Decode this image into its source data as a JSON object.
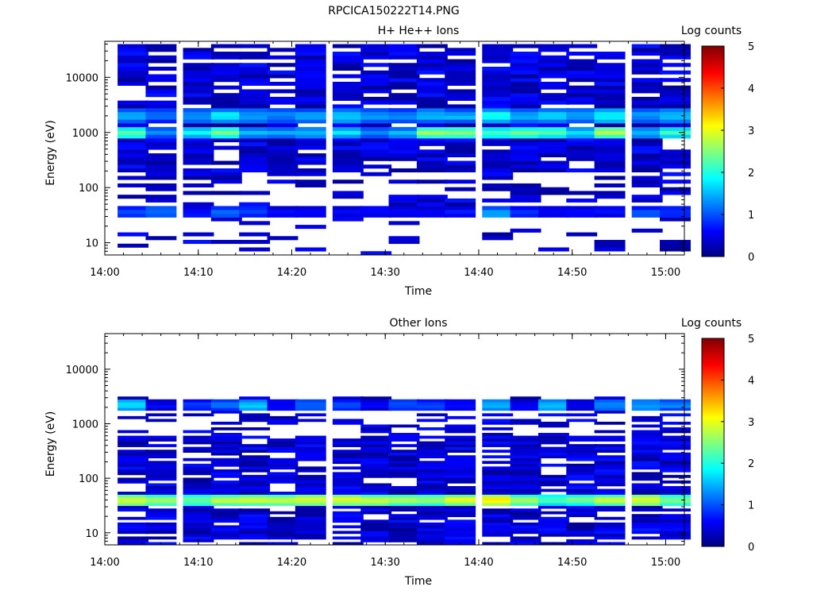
{
  "figure_title": "RPCICA150222T14.PNG",
  "chart_data": [
    {
      "type": "heatmap",
      "title": "H+ He++ Ions",
      "xlabel": "Time",
      "ylabel": "Energy (eV)",
      "colorbar_label": "Log counts",
      "y_scale": "log",
      "ylim": [
        6,
        45000
      ],
      "y_ticks": [
        10,
        100,
        1000,
        10000
      ],
      "y_tick_labels": [
        "10",
        "100",
        "1000",
        "10000"
      ],
      "x_range": [
        "14:00",
        "15:02"
      ],
      "x_ticks": [
        "14:00",
        "14:10",
        "14:20",
        "14:30",
        "14:40",
        "14:50",
        "15:00"
      ],
      "colorbar_range": [
        0,
        5
      ],
      "colorbar_ticks": [
        "0",
        "1",
        "2",
        "3",
        "4",
        "5"
      ],
      "times": [
        "14:03",
        "14:06",
        "14:10",
        "14:13",
        "14:16",
        "14:19",
        "14:22",
        "14:26",
        "14:29",
        "14:32",
        "14:35",
        "14:38",
        "14:42",
        "14:45",
        "14:48",
        "14:51",
        "14:54",
        "14:58",
        "15:01"
      ],
      "bands": [
        {
          "energy_center_eV": 2000,
          "log_counts": [
            1.6,
            1.2,
            1.5,
            1.9,
            1.6,
            1.4,
            1.5,
            1.8,
            1.5,
            1.4,
            1.7,
            1.6,
            2.1,
            1.6,
            1.9,
            1.5,
            2.0,
            1.4,
            1.7
          ]
        },
        {
          "energy_center_eV": 1000,
          "log_counts": [
            2.4,
            1.3,
            1.8,
            2.4,
            1.6,
            1.4,
            1.5,
            1.7,
            1.4,
            1.5,
            2.7,
            2.5,
            2.2,
            2.4,
            2.3,
            1.7,
            2.8,
            1.6,
            2.1
          ]
        },
        {
          "energy_center_eV": 35,
          "log_counts": [
            1.1,
            1.3,
            0.7,
            1.2,
            1.0,
            0.6,
            0.6,
            0.6,
            0.7,
            0.7,
            0.6,
            0.8,
            1.5,
            0.8,
            0.6,
            0.6,
            0.6,
            1.1,
            0.9
          ]
        },
        {
          "energy_center_eV": 9,
          "log_counts": [
            0,
            0,
            0,
            0,
            0,
            0,
            0,
            0,
            0,
            0,
            0,
            0,
            0,
            0,
            0,
            0,
            0.2,
            0,
            0.2
          ]
        }
      ]
    },
    {
      "type": "heatmap",
      "title": "Other Ions",
      "xlabel": "Time",
      "ylabel": "Energy (eV)",
      "colorbar_label": "Log counts",
      "y_scale": "log",
      "ylim": [
        6,
        45000
      ],
      "y_ticks": [
        10,
        100,
        1000,
        10000
      ],
      "y_tick_labels": [
        "10",
        "100",
        "1000",
        "10000"
      ],
      "x_range": [
        "14:00",
        "15:02"
      ],
      "x_ticks": [
        "14:00",
        "14:10",
        "14:20",
        "14:30",
        "14:40",
        "14:50",
        "15:00"
      ],
      "colorbar_range": [
        0,
        5
      ],
      "colorbar_ticks": [
        "0",
        "1",
        "2",
        "3",
        "4",
        "5"
      ],
      "times": [
        "14:03",
        "14:06",
        "14:10",
        "14:13",
        "14:16",
        "14:19",
        "14:22",
        "14:26",
        "14:29",
        "14:32",
        "14:35",
        "14:38",
        "14:42",
        "14:45",
        "14:48",
        "14:51",
        "14:54",
        "14:58",
        "15:01"
      ],
      "bands": [
        {
          "energy_center_eV": 2200,
          "log_counts": [
            1.8,
            0.6,
            0.9,
            1.2,
            1.7,
            0.7,
            1.2,
            1.0,
            0.6,
            1.1,
            1.0,
            0.6,
            1.6,
            0.6,
            1.7,
            0.6,
            1.4,
            1.5,
            1.3
          ]
        },
        {
          "energy_center_eV": 40,
          "log_counts": [
            3.1,
            2.8,
            2.6,
            3.0,
            3.0,
            3.0,
            3.1,
            3.1,
            3.0,
            2.9,
            2.8,
            3.2,
            3.4,
            2.8,
            2.3,
            2.6,
            3.0,
            3.2,
            2.6
          ]
        },
        {
          "energy_center_eV": 12,
          "log_counts": [
            0.4,
            0.2,
            0.3,
            0,
            0,
            0.3,
            0.3,
            0,
            0.1,
            0.1,
            0.2,
            0.5,
            0.6,
            0.4,
            0.6,
            0.2,
            0.5,
            0.7,
            0.4
          ]
        }
      ]
    }
  ],
  "colors": {
    "colormap": [
      "#000080",
      "#0000ff",
      "#00ffff",
      "#ffff00",
      "#ff0000",
      "#800000"
    ],
    "axis": "#000000",
    "background": "#ffffff"
  }
}
